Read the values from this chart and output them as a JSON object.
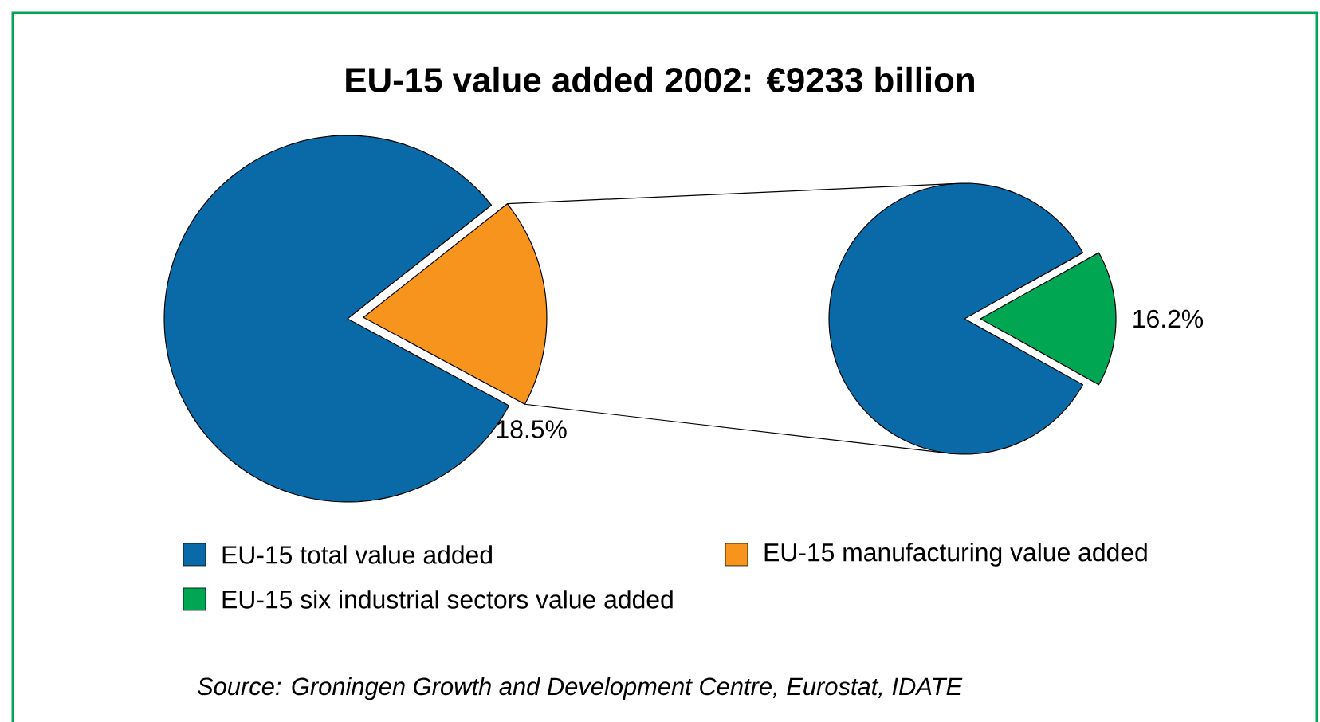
{
  "chart_data": [
    {
      "type": "pie",
      "title": "EU-15 value added 2002: €9233 billion",
      "categories": [
        "EU-15 total value added",
        "EU-15 manufacturing value added"
      ],
      "values": [
        81.5,
        18.5
      ],
      "colors": [
        "#0a6aa8",
        "#f7941d"
      ],
      "value_labels": [
        null,
        "18.5%"
      ],
      "legend": "bottom",
      "annotations": [
        "Source: Groningen Growth and Development Centre, Eurostat, IDATE"
      ]
    },
    {
      "type": "pie",
      "categories": [
        null,
        "EU-15 six industrial sectors value added"
      ],
      "values": [
        83.8,
        16.2
      ],
      "colors": [
        "#0a6aa8",
        "#00a651"
      ],
      "value_labels": [
        null,
        "16.2%"
      ],
      "legend": "bottom"
    }
  ]
}
